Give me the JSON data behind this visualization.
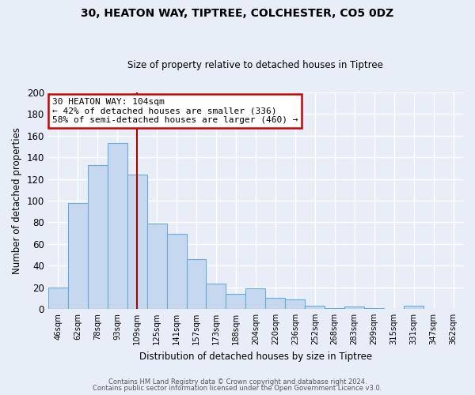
{
  "title": "30, HEATON WAY, TIPTREE, COLCHESTER, CO5 0DZ",
  "subtitle": "Size of property relative to detached houses in Tiptree",
  "xlabel": "Distribution of detached houses by size in Tiptree",
  "ylabel": "Number of detached properties",
  "bar_labels": [
    "46sqm",
    "62sqm",
    "78sqm",
    "93sqm",
    "109sqm",
    "125sqm",
    "141sqm",
    "157sqm",
    "173sqm",
    "188sqm",
    "204sqm",
    "220sqm",
    "236sqm",
    "252sqm",
    "268sqm",
    "283sqm",
    "299sqm",
    "315sqm",
    "331sqm",
    "347sqm",
    "362sqm"
  ],
  "bar_heights": [
    20,
    98,
    133,
    153,
    124,
    79,
    69,
    46,
    23,
    14,
    19,
    10,
    9,
    3,
    1,
    2,
    1,
    0,
    3,
    0,
    0
  ],
  "bar_color": "#c5d8f0",
  "bar_edge_color": "#6aaad4",
  "bg_color": "#e8eef8",
  "grid_color": "#ffffff",
  "vline_x": 4.0,
  "vline_color": "#aa0000",
  "annotation_line1": "30 HEATON WAY: 104sqm",
  "annotation_line2": "← 42% of detached houses are smaller (336)",
  "annotation_line3": "58% of semi-detached houses are larger (460) →",
  "annotation_box_color": "#ffffff",
  "annotation_box_edge": "#cc0000",
  "ylim": [
    0,
    200
  ],
  "yticks": [
    0,
    20,
    40,
    60,
    80,
    100,
    120,
    140,
    160,
    180,
    200
  ],
  "footer1": "Contains HM Land Registry data © Crown copyright and database right 2024.",
  "footer2": "Contains public sector information licensed under the Open Government Licence v3.0."
}
